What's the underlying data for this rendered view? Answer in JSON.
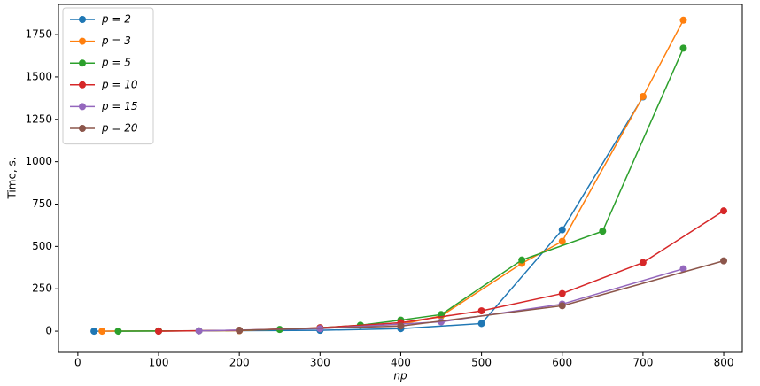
{
  "chart_data": {
    "type": "line",
    "xlabel": "np",
    "ylabel": "Time, s.",
    "xlim": [
      -24,
      823
    ],
    "ylim": [
      -125,
      1928
    ],
    "xticks": [
      0,
      100,
      200,
      300,
      400,
      500,
      600,
      700,
      800
    ],
    "yticks": [
      0,
      250,
      500,
      750,
      1000,
      1250,
      1500,
      1750
    ],
    "legend": "upper left",
    "series": [
      {
        "name": "p = 2",
        "color": "#1f77b4",
        "x": [
          20,
          100,
          200,
          300,
          400,
          500,
          600,
          700
        ],
        "values": [
          0,
          1,
          3,
          5,
          15,
          45,
          598,
          1382
        ]
      },
      {
        "name": "p = 3",
        "color": "#ff7f0e",
        "x": [
          30,
          100,
          200,
          300,
          400,
          450,
          550,
          600,
          700,
          750
        ],
        "values": [
          0,
          1,
          3,
          20,
          40,
          90,
          400,
          530,
          1385,
          1835
        ]
      },
      {
        "name": "p = 5",
        "color": "#2ca02c",
        "x": [
          50,
          100,
          150,
          200,
          250,
          300,
          350,
          400,
          450,
          550,
          650,
          750
        ],
        "values": [
          0,
          1,
          2,
          5,
          10,
          20,
          35,
          65,
          98,
          420,
          590,
          1670
        ]
      },
      {
        "name": "p = 10",
        "color": "#d62728",
        "x": [
          100,
          200,
          300,
          400,
          500,
          600,
          700,
          800
        ],
        "values": [
          0,
          5,
          20,
          50,
          120,
          222,
          405,
          710
        ]
      },
      {
        "name": "p = 15",
        "color": "#9467bd",
        "x": [
          150,
          300,
          450,
          600,
          750
        ],
        "values": [
          2,
          15,
          55,
          160,
          368
        ]
      },
      {
        "name": "p = 20",
        "color": "#8c564b",
        "x": [
          200,
          400,
          600,
          800
        ],
        "values": [
          5,
          30,
          150,
          415
        ]
      }
    ]
  }
}
